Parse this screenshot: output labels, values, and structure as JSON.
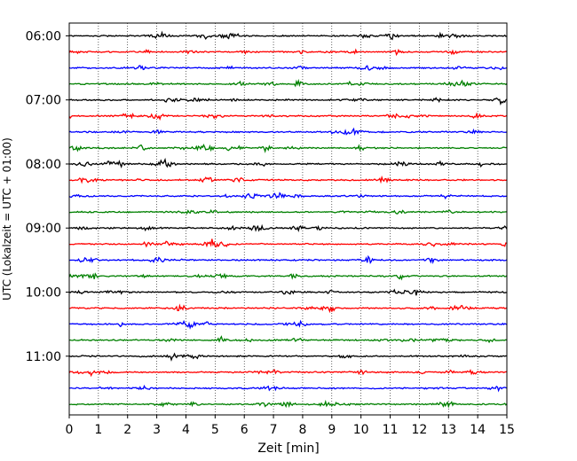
{
  "chart_data": {
    "type": "line",
    "xlabel": "Zeit  [min]",
    "ylabel": "UTC (Lokalzeit = UTC + 01:00)",
    "xlim": [
      0,
      15
    ],
    "xticks": [
      0,
      1,
      2,
      3,
      4,
      5,
      6,
      7,
      8,
      9,
      10,
      11,
      12,
      13,
      14,
      15
    ],
    "xtick_labels": [
      "0",
      "1",
      "2",
      "3",
      "4",
      "5",
      "6",
      "7",
      "8",
      "9",
      "10",
      "11",
      "12",
      "13",
      "14",
      "15"
    ],
    "ytick_labels": [
      "06:00",
      "07:00",
      "08:00",
      "09:00",
      "10:00",
      "11:00"
    ],
    "ytick_minutes": [
      360,
      420,
      480,
      540,
      600,
      660
    ],
    "trace_start_minutes": [
      360,
      375,
      390,
      405,
      420,
      435,
      450,
      465,
      480,
      495,
      510,
      525,
      540,
      555,
      570,
      585,
      600,
      615,
      630,
      645,
      660,
      675,
      690,
      705
    ],
    "trace_colors": [
      "#000000",
      "#ff0000",
      "#0000ff",
      "#008000"
    ],
    "ylim_minutes": [
      348,
      715
    ],
    "x_grid": "dotted vertical at each minute"
  }
}
